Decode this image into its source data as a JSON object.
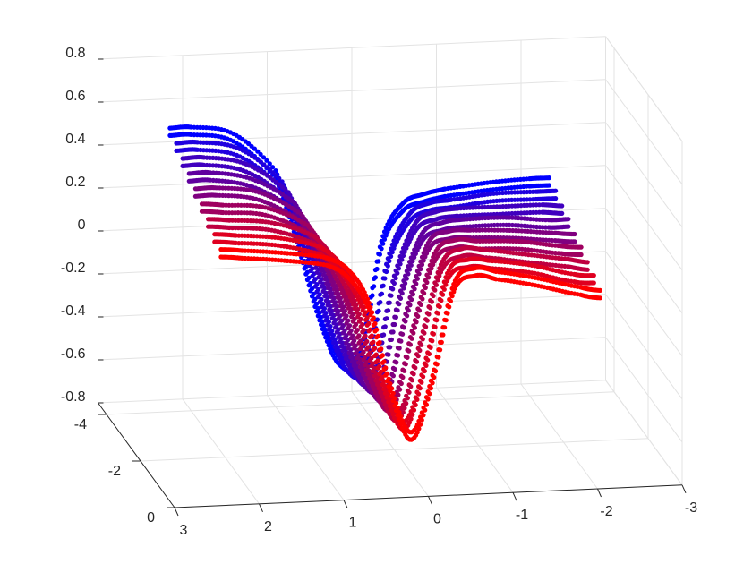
{
  "chart_data": {
    "type": "scatter3d",
    "title": "",
    "xlabel": "",
    "ylabel": "",
    "zlabel": "",
    "xlim": [
      -3,
      3
    ],
    "ylim": [
      -4.5,
      0
    ],
    "zlim": [
      -0.8,
      0.8
    ],
    "grid": true,
    "x_ticks": [
      "-3",
      "-2",
      "-1",
      "0",
      "1",
      "2",
      "3"
    ],
    "y_ticks": [
      "-4",
      "-2",
      "0"
    ],
    "z_ticks": [
      "-0.8",
      "-0.6",
      "-0.4",
      "-0.2",
      "0",
      "0.2",
      "0.4",
      "0.6",
      "0.8"
    ],
    "color_start": "#0000ff",
    "color_end": "#ff0000",
    "x": [
      2.25,
      2,
      1.5,
      1,
      0.75,
      0.5,
      0.25,
      0,
      -0.25,
      -0.5,
      -0.75,
      -1,
      -1.5,
      -2,
      -2.25
    ],
    "slices": [
      {
        "y": -4.0,
        "z": [
          0.52,
          0.52,
          0.48,
          0.3,
          0.0,
          -0.35,
          -0.58,
          -0.55,
          -0.05,
          0.12,
          0.16,
          0.18,
          0.2,
          0.21,
          0.21
        ]
      },
      {
        "y": -3.625,
        "z": [
          0.49,
          0.49,
          0.45,
          0.29,
          0.02,
          -0.31,
          -0.56,
          -0.56,
          -0.09,
          0.11,
          0.16,
          0.17,
          0.19,
          0.19,
          0.19
        ]
      },
      {
        "y": -3.25,
        "z": [
          0.46,
          0.46,
          0.42,
          0.28,
          0.04,
          -0.26,
          -0.53,
          -0.57,
          -0.13,
          0.11,
          0.16,
          0.17,
          0.17,
          0.17,
          0.16
        ]
      },
      {
        "y": -2.875,
        "z": [
          0.43,
          0.43,
          0.39,
          0.27,
          0.06,
          -0.22,
          -0.51,
          -0.57,
          -0.16,
          0.1,
          0.15,
          0.16,
          0.16,
          0.14,
          0.14
        ]
      },
      {
        "y": -2.5,
        "z": [
          0.4,
          0.4,
          0.37,
          0.26,
          0.08,
          -0.18,
          -0.48,
          -0.58,
          -0.2,
          0.1,
          0.15,
          0.15,
          0.14,
          0.12,
          0.11
        ]
      },
      {
        "y": -2.125,
        "z": [
          0.37,
          0.36,
          0.34,
          0.25,
          0.1,
          -0.13,
          -0.46,
          -0.59,
          -0.24,
          0.09,
          0.15,
          0.14,
          0.13,
          0.1,
          0.09
        ]
      },
      {
        "y": -1.75,
        "z": [
          0.34,
          0.33,
          0.31,
          0.24,
          0.12,
          -0.09,
          -0.43,
          -0.6,
          -0.28,
          0.08,
          0.15,
          0.14,
          0.11,
          0.08,
          0.06
        ]
      },
      {
        "y": -1.375,
        "z": [
          0.31,
          0.3,
          0.28,
          0.23,
          0.14,
          -0.04,
          -0.41,
          -0.6,
          -0.31,
          0.08,
          0.14,
          0.13,
          0.1,
          0.05,
          0.04
        ]
      },
      {
        "y": -1.0,
        "z": [
          0.28,
          0.27,
          0.25,
          0.22,
          0.16,
          0.0,
          -0.38,
          -0.61,
          -0.35,
          0.07,
          0.14,
          0.12,
          0.08,
          0.03,
          0.01
        ]
      }
    ]
  }
}
